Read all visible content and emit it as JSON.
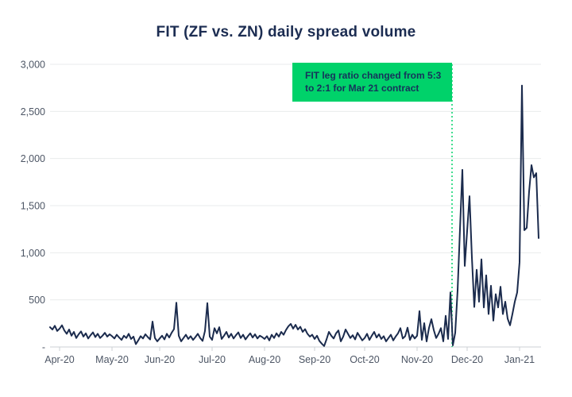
{
  "chart": {
    "title": "FIT (ZF vs. ZN) daily spread volume",
    "annotation": {
      "line1": "FIT leg ratio changed from 5:3",
      "line2": "to 2:1 for Mar 21 contract"
    }
  },
  "colors": {
    "line_navy": "#1b2b4d",
    "annotation_green": "#00d26a",
    "label_gray": "#4d5665",
    "grid_light": "#e9ebec",
    "axis_line": "#ccd2d4",
    "title_navy": "#1c2d52"
  },
  "chart_data": {
    "type": "line",
    "title": "FIT (ZF vs. ZN) daily spread volume",
    "series_name": "FIT (ZF vs. ZN) daily spread volume",
    "xlabel": "",
    "ylabel": "",
    "ylim": [
      0,
      3000
    ],
    "grid": "horizontal",
    "x_tick_labels": [
      "Apr-20",
      "May-20",
      "Jun-20",
      "Jul-20",
      "Aug-20",
      "Sep-20",
      "Oct-20",
      "Nov-20",
      "Dec-20",
      "Jan-21"
    ],
    "x_tick_indices": [
      4,
      26,
      46,
      68,
      90,
      111,
      132,
      154,
      175,
      197
    ],
    "y_tick_values": [
      0,
      500,
      1000,
      1500,
      2000,
      2500,
      3000
    ],
    "y_tick_labels": [
      "-",
      "500",
      "1,000",
      "1,500",
      "2,000",
      "2,500",
      "3,000"
    ],
    "annotation_text": "FIT leg ratio changed from 5:3 to 2:1 for Mar 21 contract",
    "annotation_x_index": 168,
    "values": [
      210,
      185,
      225,
      170,
      195,
      230,
      175,
      140,
      185,
      120,
      160,
      95,
      135,
      165,
      110,
      145,
      90,
      125,
      155,
      105,
      140,
      95,
      120,
      150,
      110,
      135,
      115,
      90,
      130,
      100,
      75,
      120,
      95,
      140,
      85,
      110,
      30,
      70,
      115,
      90,
      135,
      105,
      80,
      270,
      95,
      60,
      90,
      120,
      80,
      140,
      100,
      150,
      190,
      470,
      120,
      60,
      95,
      130,
      85,
      115,
      75,
      105,
      140,
      95,
      65,
      170,
      465,
      110,
      75,
      200,
      145,
      210,
      85,
      120,
      160,
      100,
      140,
      90,
      125,
      155,
      95,
      130,
      80,
      115,
      145,
      100,
      135,
      90,
      120,
      105,
      85,
      115,
      70,
      130,
      95,
      145,
      110,
      160,
      130,
      180,
      220,
      245,
      195,
      235,
      185,
      215,
      160,
      190,
      140,
      110,
      130,
      85,
      120,
      65,
      35,
      10,
      80,
      160,
      120,
      90,
      145,
      175,
      60,
      110,
      185,
      140,
      95,
      125,
      80,
      150,
      110,
      70,
      95,
      140,
      75,
      120,
      160,
      100,
      135,
      85,
      115,
      60,
      95,
      130,
      70,
      110,
      145,
      200,
      90,
      115,
      205,
      75,
      130,
      90,
      120,
      380,
      76,
      253,
      59,
      202,
      295,
      180,
      95,
      140,
      200,
      60,
      330,
      85,
      580,
      17,
      150,
      600,
      1250,
      1880,
      860,
      1230,
      1600,
      950,
      425,
      820,
      480,
      930,
      420,
      760,
      350,
      650,
      280,
      560,
      420,
      640,
      350,
      480,
      300,
      230,
      350,
      480,
      580,
      900,
      2775,
      1240,
      1265,
      1650,
      1930,
      1800,
      1845,
      1155
    ]
  }
}
